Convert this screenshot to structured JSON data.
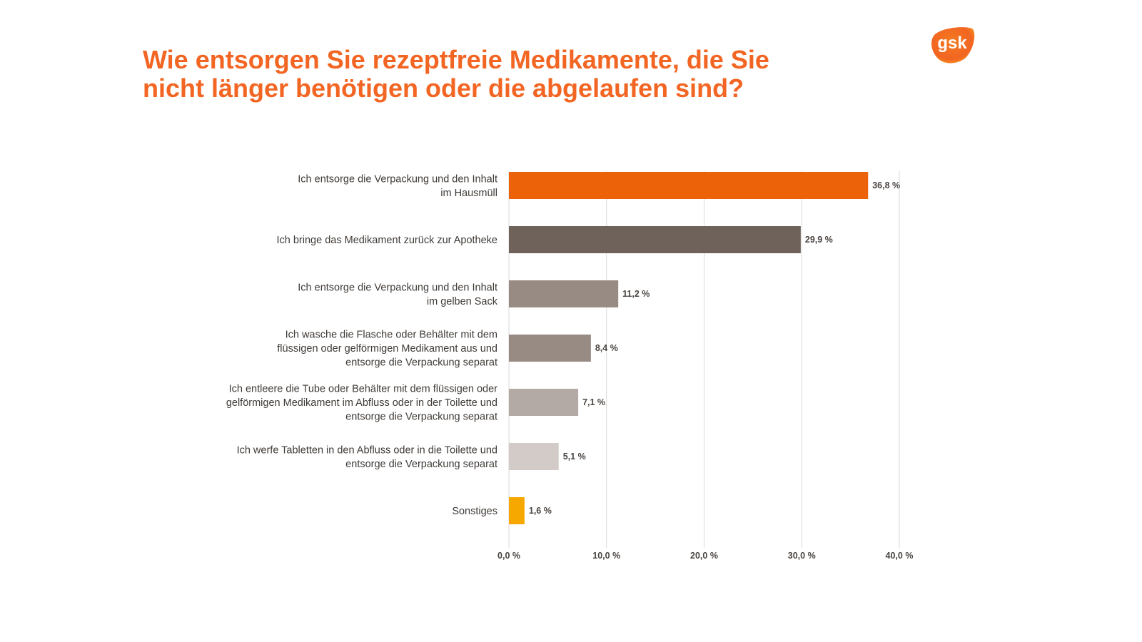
{
  "header": {
    "title_lines": [
      "Wie entsorgen Sie rezeptfreie Medikamente, die Sie",
      "nicht länger benötigen oder die abgelaufen sind?"
    ],
    "logo_text": "gsk",
    "brand_color": "#f26522"
  },
  "chart_data": {
    "type": "bar",
    "orientation": "horizontal",
    "title": "Wie entsorgen Sie rezeptfreie Medikamente, die Sie nicht länger benötigen oder die abgelaufen sind?",
    "xlabel": "",
    "ylabel": "",
    "categories": [
      [
        "Ich entsorge die Verpackung und den Inhalt",
        "im Hausmüll"
      ],
      [
        "Ich bringe das Medikament zurück zur Apotheke"
      ],
      [
        "Ich entsorge die Verpackung und den Inhalt",
        "im gelben Sack"
      ],
      [
        "Ich wasche die Flasche oder Behälter mit dem",
        "flüssigen oder gelförmigen Medikament aus und",
        "entsorge die Verpackung separat"
      ],
      [
        "Ich entleere die Tube oder Behälter mit dem flüssigen oder",
        "gelförmigen Medikament im Abfluss oder in der Toilette und",
        "entsorge die Verpackung separat"
      ],
      [
        "Ich werfe Tabletten in den Abfluss oder in die Toilette und",
        "entsorge die Verpackung separat"
      ],
      [
        "Sonstiges"
      ]
    ],
    "values": [
      36.8,
      29.9,
      11.2,
      8.4,
      7.1,
      5.1,
      1.6
    ],
    "value_labels": [
      "36,8 %",
      "29,9 %",
      "11,2 %",
      "8,4 %",
      "7,1 %",
      "5,1 %",
      "1,6 %"
    ],
    "colors": [
      "#eb6209",
      "#6e625a",
      "#978b84",
      "#978b84",
      "#b3aaa5",
      "#d2cbc8",
      "#f7a800"
    ],
    "xlim": [
      0,
      40
    ],
    "xticks": [
      0,
      10,
      20,
      30,
      40
    ],
    "xtick_labels": [
      "0,0 %",
      "10,0 %",
      "20,0 %",
      "30,0 %",
      "40,0 %"
    ],
    "grid": true,
    "legend": "none"
  }
}
